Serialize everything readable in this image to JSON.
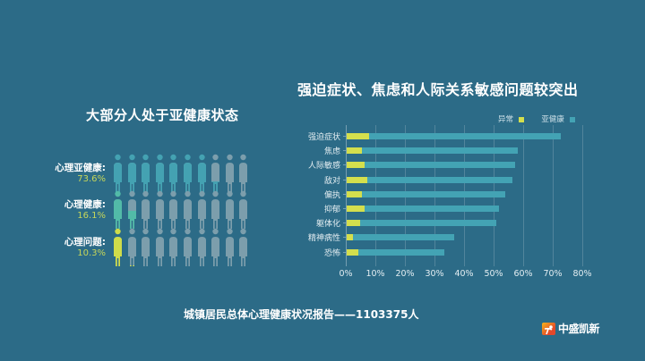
{
  "left_panel": {
    "title": "大部分人处于亚健康状态",
    "rows": [
      {
        "label": "心理亚健康:",
        "percent": "73.6%",
        "value": 73.6,
        "color": "#44a2b2",
        "fill_color": "#44a2b2"
      },
      {
        "label": "心理健康:",
        "percent": "16.1%",
        "value": 16.1,
        "color": "#52bba8",
        "fill_color": "#52bba8"
      },
      {
        "label": "心理问题:",
        "percent": "10.3%",
        "value": 10.3,
        "color": "#cfdc4a",
        "fill_color": "#cfdc4a"
      }
    ],
    "figure_empty_color": "#7c9eac",
    "figures_per_row": 10
  },
  "right_panel": {
    "title": "强迫症状、焦虑和人际关系敏感问题较突出",
    "legend": [
      {
        "label": "异常",
        "color": "#d4df4d"
      },
      {
        "label": "亚健康",
        "color": "#43a3b4"
      }
    ]
  },
  "chart_data": [
    {
      "type": "bar",
      "orientation": "horizontal",
      "stacked": false,
      "title": "强迫症状、焦虑和人际关系敏感问题较突出",
      "categories": [
        "强迫症状",
        "焦虑",
        "人际敏感",
        "敌对",
        "偏执",
        "抑郁",
        "躯体化",
        "精神病性",
        "恐怖"
      ],
      "series": [
        {
          "name": "异常",
          "color": "#d4df4d",
          "values": [
            7.5,
            5.0,
            6.0,
            7.0,
            5.0,
            6.0,
            4.5,
            2.0,
            4.0
          ]
        },
        {
          "name": "亚健康",
          "color": "#43a3b4",
          "values": [
            72.5,
            58.0,
            57.0,
            56.0,
            53.5,
            51.5,
            50.5,
            36.5,
            33.0
          ]
        }
      ],
      "xlabel": "",
      "ylabel": "",
      "xlim": [
        0,
        80
      ],
      "xticks": [
        "0%",
        "10%",
        "20%",
        "30%",
        "40%",
        "50%",
        "60%",
        "70%",
        "80%"
      ],
      "grid": true,
      "legend_position": "top-right"
    },
    {
      "type": "pictograph",
      "title": "大部分人处于亚健康状态",
      "categories": [
        "心理亚健康",
        "心理健康",
        "心理问题"
      ],
      "values": [
        73.6,
        16.1,
        10.3
      ],
      "unit": "%"
    }
  ],
  "footer": {
    "text": "城镇居民总体心理健康状况报告——1103375人"
  },
  "logo": {
    "text": "中盛凯新"
  }
}
